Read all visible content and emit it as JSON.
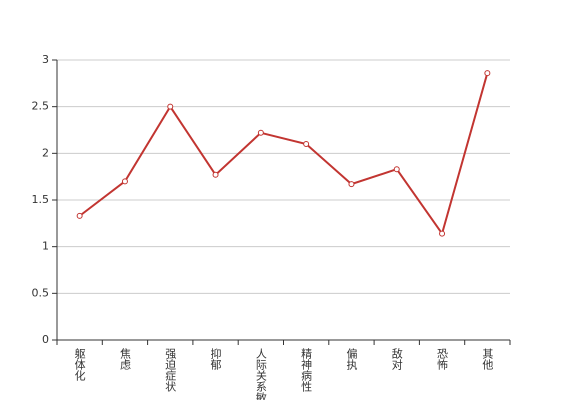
{
  "chart_data": {
    "type": "line",
    "categories": [
      "躯体化",
      "焦虑",
      "强迫症状",
      "抑郁",
      "人际关系敏感",
      "精神病性",
      "偏执",
      "敌对",
      "恐怖",
      "其他"
    ],
    "values": [
      1.33,
      1.7,
      2.5,
      1.77,
      2.22,
      2.1,
      1.67,
      1.83,
      1.14,
      2.86
    ],
    "color": "#c23531",
    "ylim": [
      0,
      3
    ],
    "yticks": [
      0,
      0.5,
      1,
      1.5,
      2,
      2.5,
      3
    ],
    "grid": true
  }
}
